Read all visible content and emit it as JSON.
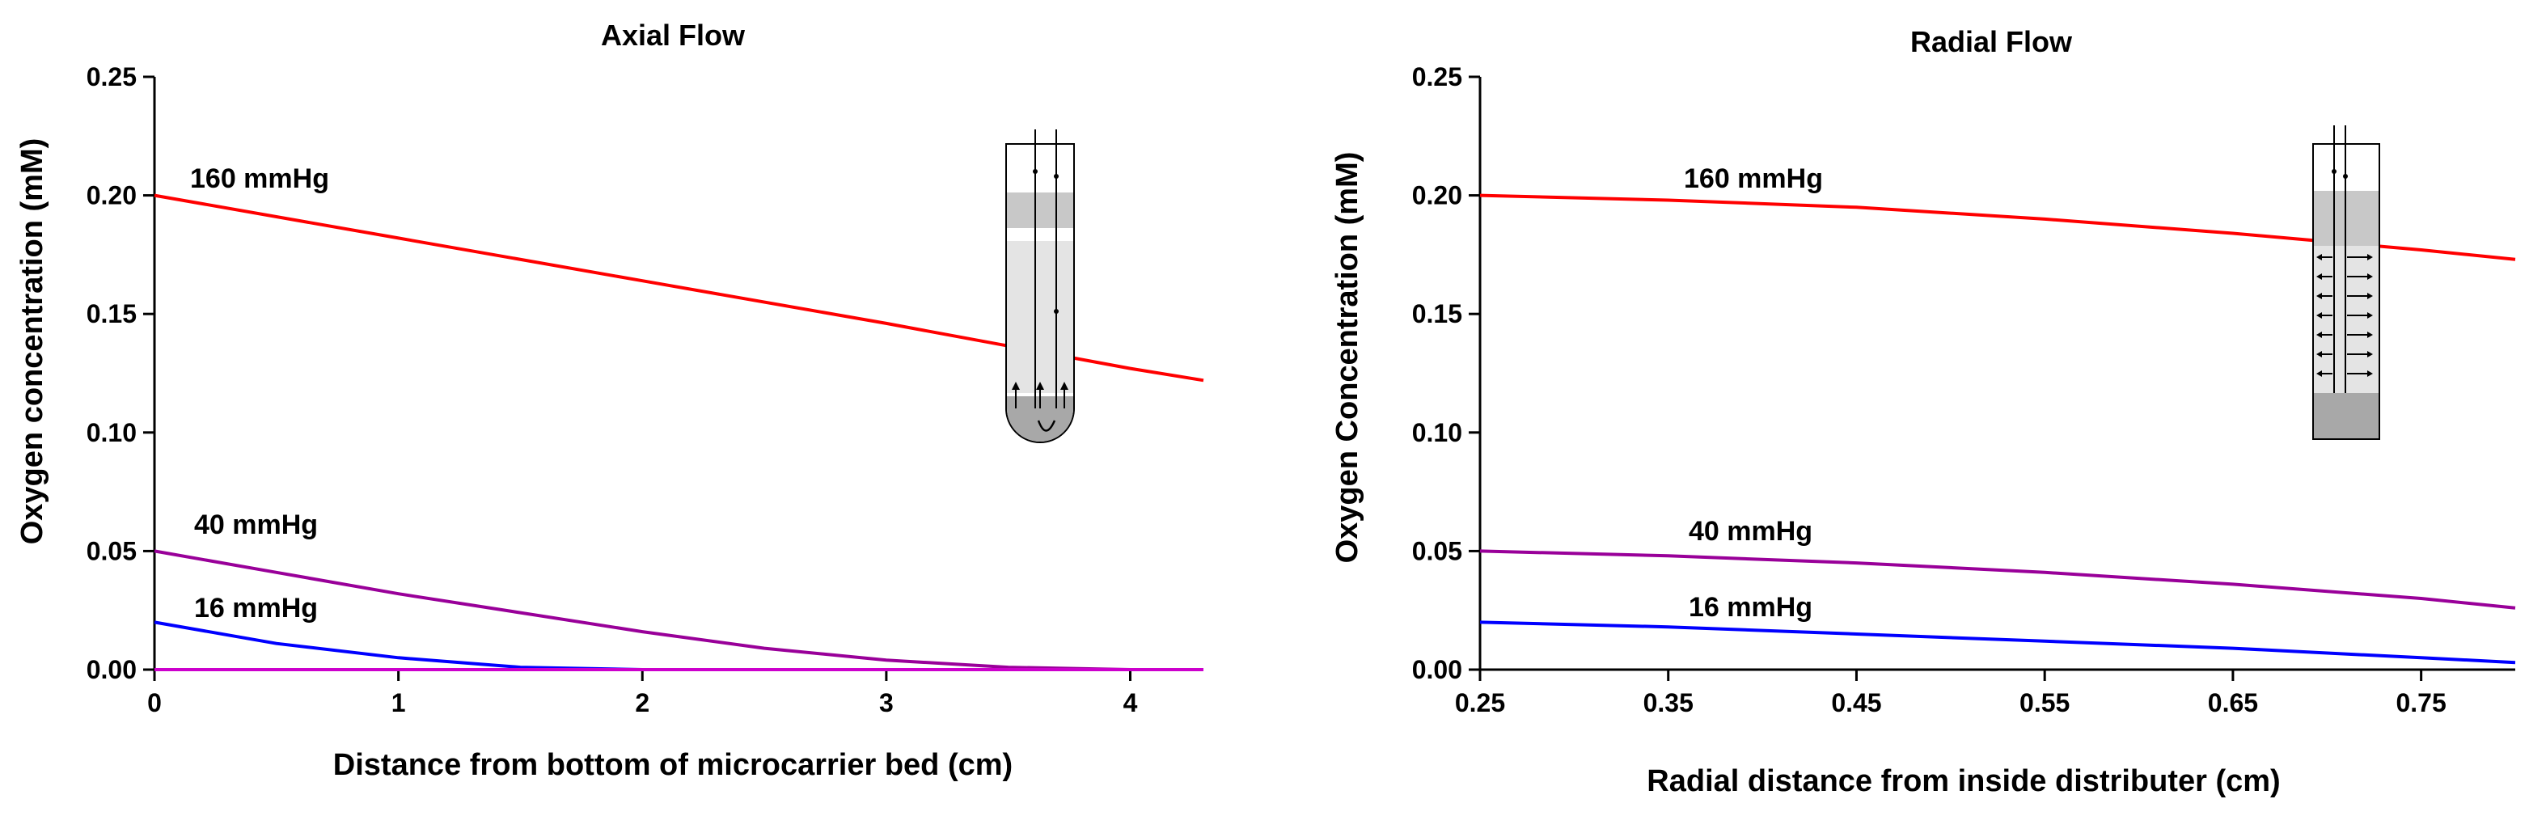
{
  "chart_data": [
    {
      "type": "line",
      "title": "Axial Flow",
      "xlabel": "Distance from bottom of microcarrier bed (cm)",
      "ylabel": "Oxygen concentration (mM)",
      "xlim": [
        0,
        4.3
      ],
      "ylim": [
        0,
        0.25
      ],
      "xticks": [
        0,
        1,
        2,
        3,
        4
      ],
      "xtick_labels": [
        "0",
        "1",
        "2",
        "3",
        "4"
      ],
      "yticks": [
        0,
        0.05,
        0.1,
        0.15,
        0.2,
        0.25
      ],
      "ytick_labels": [
        "0.00",
        "0.05",
        "0.10",
        "0.15",
        "0.20",
        "0.25"
      ],
      "grid": false,
      "series": [
        {
          "name": "160 mmHg",
          "label": "160 mmHg",
          "color": "#ff0000",
          "x": [
            0,
            1,
            2,
            3,
            4,
            4.3
          ],
          "y": [
            0.2,
            0.182,
            0.164,
            0.146,
            0.127,
            0.122
          ]
        },
        {
          "name": "40 mmHg",
          "label": "40 mmHg",
          "color": "#990099",
          "x": [
            0,
            0.5,
            1,
            1.5,
            2,
            2.5,
            3,
            3.5,
            4,
            4.3
          ],
          "y": [
            0.05,
            0.041,
            0.032,
            0.024,
            0.016,
            0.009,
            0.004,
            0.001,
            0.0,
            0.0
          ]
        },
        {
          "name": "16 mmHg",
          "label": "16 mmHg",
          "color": "#0000ff",
          "x": [
            0,
            0.5,
            1,
            1.5,
            2,
            2.5,
            3,
            4,
            4.3
          ],
          "y": [
            0.02,
            0.011,
            0.005,
            0.001,
            0.0,
            0.0,
            0.0,
            0.0,
            0.0
          ]
        },
        {
          "name": "zero line",
          "label": "",
          "color": "#cc00cc",
          "x": [
            0,
            4.3
          ],
          "y": [
            0,
            0
          ]
        }
      ],
      "inset": "axial-flow-bioreactor-schematic"
    },
    {
      "type": "line",
      "title": "Radial Flow",
      "xlabel": "Radial distance from inside distributer (cm)",
      "ylabel": "Oxygen Concentration (mM)",
      "xlim": [
        0.25,
        0.8
      ],
      "ylim": [
        0,
        0.25
      ],
      "xticks": [
        0.25,
        0.35,
        0.45,
        0.55,
        0.65,
        0.75
      ],
      "xtick_labels": [
        "0.25",
        "0.35",
        "0.45",
        "0.55",
        "0.65",
        "0.75"
      ],
      "yticks": [
        0,
        0.05,
        0.1,
        0.15,
        0.2,
        0.25
      ],
      "ytick_labels": [
        "0.00",
        "0.05",
        "0.10",
        "0.15",
        "0.20",
        "0.25"
      ],
      "grid": false,
      "series": [
        {
          "name": "160 mmHg",
          "label": "160 mmHg",
          "color": "#ff0000",
          "x": [
            0.25,
            0.35,
            0.45,
            0.55,
            0.65,
            0.75,
            0.8
          ],
          "y": [
            0.2,
            0.198,
            0.195,
            0.19,
            0.184,
            0.177,
            0.173
          ]
        },
        {
          "name": "40 mmHg",
          "label": "40 mmHg",
          "color": "#990099",
          "x": [
            0.25,
            0.35,
            0.45,
            0.55,
            0.65,
            0.75,
            0.8
          ],
          "y": [
            0.05,
            0.048,
            0.045,
            0.041,
            0.036,
            0.03,
            0.026
          ]
        },
        {
          "name": "16 mmHg",
          "label": "16 mmHg",
          "color": "#0000ff",
          "x": [
            0.25,
            0.35,
            0.45,
            0.55,
            0.65,
            0.75,
            0.8
          ],
          "y": [
            0.02,
            0.018,
            0.015,
            0.012,
            0.009,
            0.005,
            0.003
          ]
        }
      ],
      "inset": "radial-flow-bioreactor-schematic"
    }
  ]
}
